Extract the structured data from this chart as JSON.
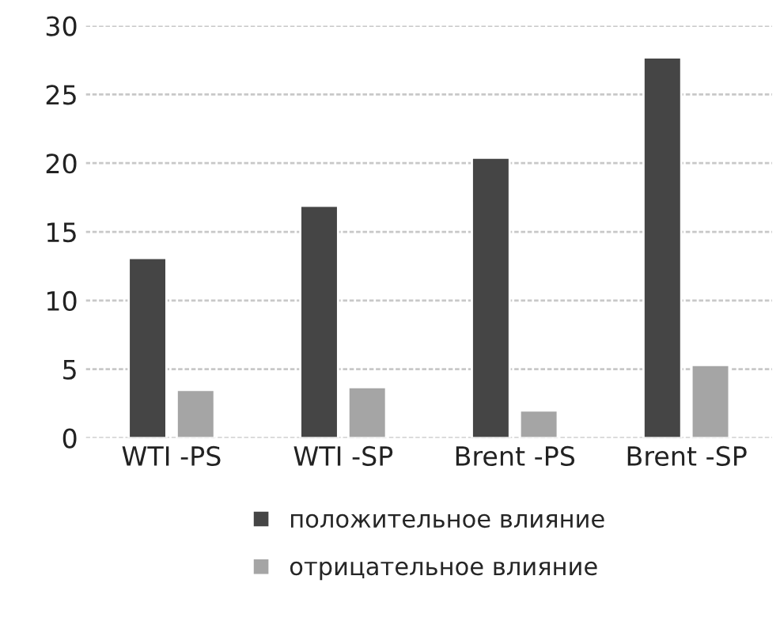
{
  "chart_data": {
    "type": "bar",
    "categories": [
      "WTI -PS",
      "WTI -SP",
      "Brent -PS",
      "Brent -SP"
    ],
    "series": [
      {
        "name": "положительное влияние",
        "color": "#454545",
        "values": [
          13.1,
          16.9,
          20.4,
          27.7
        ]
      },
      {
        "name": "отрицательное влияние",
        "color": "#a5a5a5",
        "values": [
          3.5,
          3.7,
          2.0,
          5.3
        ]
      }
    ],
    "ylim": [
      0,
      30
    ],
    "yticks": [
      0,
      5,
      10,
      15,
      20,
      25,
      30
    ],
    "grid": "y",
    "legend": "bottom"
  }
}
